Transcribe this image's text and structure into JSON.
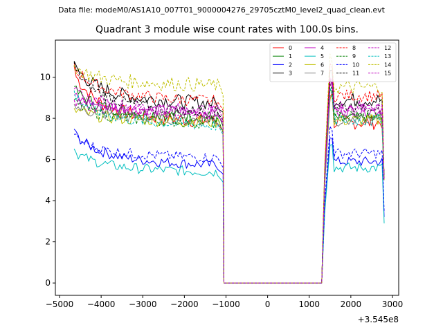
{
  "figure": {
    "suptitle": "Data file: modeM0/AS1A10_007T01_9000004276_29705cztM0_level2_quad_clean.evt"
  },
  "chart_data": {
    "type": "line",
    "title": "Quadrant 3 module wise count rates with 100.0s bins.",
    "xlabel": "",
    "ylabel": "",
    "x_offset_label": "+3.545e8",
    "xlim": [
      -5100,
      3150
    ],
    "ylim": [
      -0.6,
      11.8
    ],
    "xticks": [
      -5000,
      -4000,
      -3000,
      -2000,
      -1000,
      0,
      1000,
      2000,
      3000
    ],
    "xtick_labels": [
      "−5000",
      "−4000",
      "−3000",
      "−2000",
      "−1000",
      "0",
      "1000",
      "2000",
      "3000"
    ],
    "yticks": [
      0,
      2,
      4,
      6,
      8,
      10
    ],
    "ytick_labels": [
      "0",
      "2",
      "4",
      "6",
      "8",
      "10"
    ],
    "grid": false,
    "legend_position": "top-right",
    "series_x": {
      "seg1_start": -4650,
      "seg1_step": 50,
      "seg1_count": 70,
      "drop_x": -1070,
      "gap_start": -1050,
      "gap_end": 1300,
      "rise_x": 1370,
      "seg2_start": 1500,
      "seg2_step": 50,
      "seg2_count": 26,
      "tail_x": 2800,
      "gap_value": 0
    },
    "series": [
      {
        "name": "0",
        "color": "#ff0000",
        "style": "solid",
        "level1": 8.0,
        "level2": 7.8,
        "start": 10.4,
        "trend": 0.5,
        "noise": 0.35,
        "tail": 5.0
      },
      {
        "name": "1",
        "color": "#008000",
        "style": "solid",
        "level1": 8.2,
        "level2": 8.0,
        "start": 9.4,
        "trend": 0.5,
        "noise": 0.3,
        "tail": 5.0
      },
      {
        "name": "2",
        "color": "#0000ff",
        "style": "solid",
        "level1": 5.9,
        "level2": 5.9,
        "start": 7.3,
        "trend": 0.6,
        "noise": 0.25,
        "tail": 3.2
      },
      {
        "name": "3",
        "color": "#000000",
        "style": "solid",
        "level1": 8.9,
        "level2": 8.9,
        "start": 10.6,
        "trend": 0.6,
        "noise": 0.35,
        "tail": 5.0
      },
      {
        "name": "4",
        "color": "#bf00bf",
        "style": "solid",
        "level1": 8.4,
        "level2": 8.4,
        "start": 9.0,
        "trend": 0.4,
        "noise": 0.3,
        "tail": 5.0
      },
      {
        "name": "5",
        "color": "#00bfbf",
        "style": "solid",
        "level1": 5.5,
        "level2": 5.6,
        "start": 6.4,
        "trend": 0.4,
        "noise": 0.25,
        "tail": 2.9
      },
      {
        "name": "6",
        "color": "#bfbf00",
        "style": "solid",
        "level1": 7.9,
        "level2": 7.9,
        "start": 8.4,
        "trend": 0.3,
        "noise": 0.3,
        "tail": 5.0
      },
      {
        "name": "7",
        "color": "#808080",
        "style": "solid",
        "level1": 8.0,
        "level2": 7.9,
        "start": 8.6,
        "trend": 0.3,
        "noise": 0.3,
        "tail": 5.0
      },
      {
        "name": "8",
        "color": "#ff0000",
        "style": "dashed",
        "level1": 9.0,
        "level2": 9.1,
        "start": 10.5,
        "trend": 0.6,
        "noise": 0.3,
        "tail": 5.0
      },
      {
        "name": "9",
        "color": "#008000",
        "style": "dashed",
        "level1": 7.9,
        "level2": 8.1,
        "start": 8.8,
        "trend": 0.4,
        "noise": 0.3,
        "tail": 5.0
      },
      {
        "name": "10",
        "color": "#0000ff",
        "style": "dashed",
        "level1": 6.2,
        "level2": 6.3,
        "start": 7.1,
        "trend": 0.4,
        "noise": 0.25,
        "tail": 3.5
      },
      {
        "name": "11",
        "color": "#000000",
        "style": "dashed",
        "level1": 8.5,
        "level2": 8.6,
        "start": 10.5,
        "trend": 0.8,
        "noise": 0.3,
        "tail": 5.0
      },
      {
        "name": "12",
        "color": "#bf00bf",
        "style": "dashed",
        "level1": 8.5,
        "level2": 8.6,
        "start": 9.3,
        "trend": 0.4,
        "noise": 0.3,
        "tail": 5.0
      },
      {
        "name": "13",
        "color": "#00bfbf",
        "style": "dashed",
        "level1": 7.8,
        "level2": 7.9,
        "start": 9.2,
        "trend": 0.5,
        "noise": 0.3,
        "tail": 5.0
      },
      {
        "name": "14",
        "color": "#bfbf00",
        "style": "dashed",
        "level1": 9.7,
        "level2": 9.5,
        "start": 10.5,
        "trend": 0.3,
        "noise": 0.35,
        "tail": 5.0
      },
      {
        "name": "15",
        "color": "#bf00bf",
        "style": "dashed",
        "level1": 8.3,
        "level2": 8.4,
        "start": 8.8,
        "trend": 0.3,
        "noise": 0.3,
        "tail": 5.0
      }
    ]
  }
}
